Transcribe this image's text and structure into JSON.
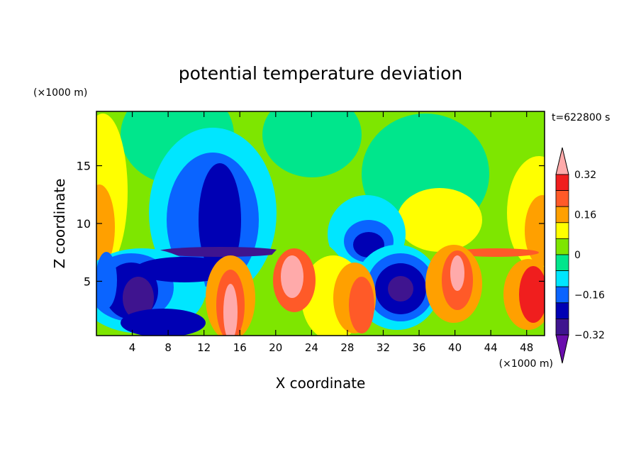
{
  "chart_data": {
    "type": "heatmap",
    "subtype": "filled-contour",
    "title": "potential temperature deviation",
    "xlabel": "X coordinate",
    "ylabel": "Z coordinate",
    "x_unit": "(×1000 m)",
    "y_unit": "(×1000 m)",
    "time_label": "t=622800 s",
    "xlim": [
      0,
      50
    ],
    "ylim": [
      0.3,
      19.7
    ],
    "x_ticks": [
      4,
      8,
      12,
      16,
      20,
      24,
      28,
      32,
      36,
      40,
      44,
      48
    ],
    "y_ticks": [
      5,
      10,
      15
    ],
    "colorbar": {
      "levels": [
        -0.4,
        -0.32,
        -0.24,
        -0.16,
        -0.08,
        0,
        0.08,
        0.16,
        0.24,
        0.32,
        0.4
      ],
      "tick_labels": [
        "0.32",
        "0.16",
        "0",
        "−0.16",
        "−0.32"
      ],
      "tick_values": [
        0.32,
        0.16,
        0,
        -0.16,
        -0.32
      ],
      "colors": [
        "#6a0dad",
        "#3f148f",
        "#0000b4",
        "#0a64ff",
        "#00e6ff",
        "#00e68c",
        "#7ee600",
        "#ffff00",
        "#ffa000",
        "#ff5a28",
        "#f01e1e",
        "#ffaaaa"
      ],
      "extend": "both"
    },
    "features": [
      {
        "x": 14,
        "z": 11,
        "value": -0.28
      },
      {
        "x": 13,
        "z": 7.4,
        "value": -0.4
      },
      {
        "x": 2,
        "z": 5,
        "value": -0.32
      },
      {
        "x": 33.5,
        "z": 4.5,
        "value": -0.4
      },
      {
        "x": 30,
        "z": 8.5,
        "value": -0.28
      },
      {
        "x": 6,
        "z": 18,
        "value": -0.04
      },
      {
        "x": 1,
        "z": 10,
        "value": 0.2
      },
      {
        "x": 48,
        "z": 11,
        "value": 0.2
      },
      {
        "x": 14.5,
        "z": 2.5,
        "value": 0.4
      },
      {
        "x": 21.5,
        "z": 5,
        "value": 0.4
      },
      {
        "x": 39,
        "z": 4,
        "value": 0.32
      },
      {
        "x": 48,
        "z": 3,
        "value": 0.32
      }
    ]
  }
}
